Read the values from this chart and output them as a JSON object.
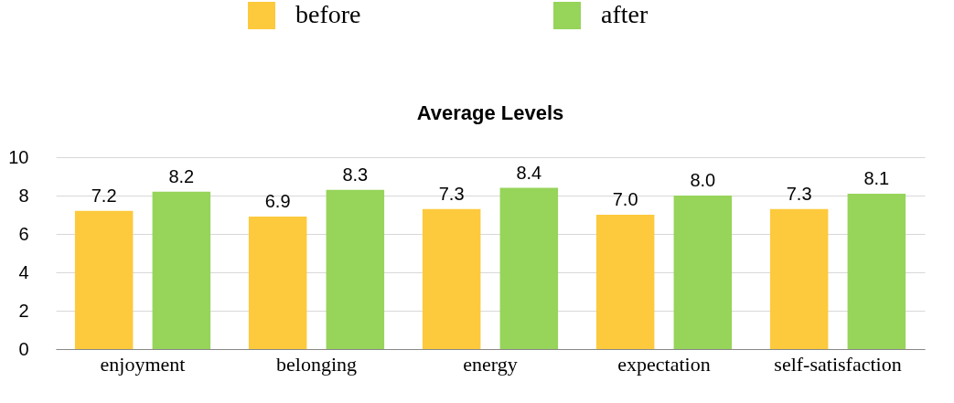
{
  "chart_data": {
    "type": "bar",
    "title": "Average Levels",
    "categories": [
      "enjoyment",
      "belonging",
      "energy",
      "expectation",
      "self-satisfaction"
    ],
    "series": [
      {
        "name": "before",
        "color": "#fdc93d",
        "values": [
          7.2,
          6.9,
          7.3,
          7.0,
          7.3
        ]
      },
      {
        "name": "after",
        "color": "#96d45a",
        "values": [
          8.2,
          8.3,
          8.4,
          8.0,
          8.1
        ]
      }
    ],
    "value_labels": [
      [
        "7.2",
        "6.9",
        "7.3",
        "7.0",
        "7.3"
      ],
      [
        "8.2",
        "8.3",
        "8.4",
        "8.0",
        "8.1"
      ]
    ],
    "ylim": [
      0,
      10
    ],
    "yticks": [
      0,
      2,
      4,
      6,
      8,
      10
    ],
    "grid": "y",
    "legend": "top"
  }
}
